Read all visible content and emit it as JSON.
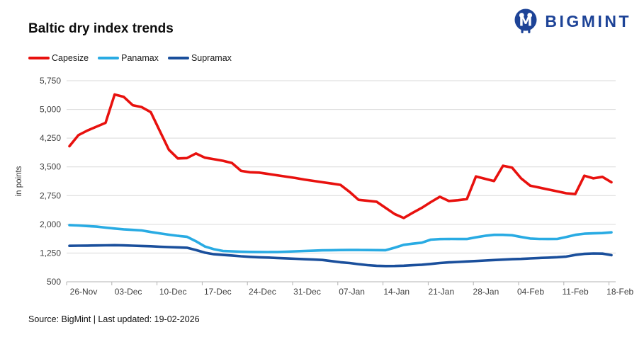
{
  "header": {
    "title": "Baltic dry index trends",
    "brand": "BIGMINT"
  },
  "legend": [
    {
      "label": "Capesize",
      "color": "#e8110e"
    },
    {
      "label": "Panamax",
      "color": "#29abe3"
    },
    {
      "label": "Supramax",
      "color": "#1a4f9c"
    }
  ],
  "footer": {
    "text": "Source: BigMint | Last updated: 19-02-2026"
  },
  "colors": {
    "grid": "#d9d9d9",
    "axis": "#b3b3b3",
    "tick_text": "#3f3f3f",
    "brand_navy": "#1d4397"
  },
  "chart_data": {
    "type": "line",
    "title": "Baltic dry index trends",
    "xlabel": "",
    "ylabel": "in points",
    "ylim": [
      500,
      5750
    ],
    "ytick_step": 750,
    "grid": "horizontal",
    "legend_position": "top-left",
    "y_ticks": [
      "5,750",
      "5,000",
      "4,250",
      "3,500",
      "2,750",
      "2,000",
      "1,250",
      "500"
    ],
    "x_tick_labels": [
      "26-Nov",
      "03-Dec",
      "10-Dec",
      "17-Dec",
      "24-Dec",
      "31-Dec",
      "07-Jan",
      "14-Jan",
      "21-Jan",
      "28-Jan",
      "04-Feb",
      "11-Feb",
      "18-Feb"
    ],
    "x_unit": "daily points, labelled weekly",
    "series": [
      {
        "name": "Capesize",
        "color": "#e8110e",
        "values": [
          4040,
          4330,
          4450,
          4550,
          4650,
          5390,
          5330,
          5110,
          5060,
          4930,
          4440,
          3950,
          3720,
          3730,
          3850,
          3740,
          3700,
          3660,
          3600,
          3395,
          3360,
          3350,
          3315,
          3280,
          3245,
          3210,
          3170,
          3135,
          3100,
          3065,
          3030,
          2850,
          2640,
          2615,
          2590,
          2430,
          2270,
          2165,
          2300,
          2430,
          2580,
          2720,
          2610,
          2630,
          2660,
          3250,
          3190,
          3130,
          3530,
          3480,
          3200,
          3010,
          2960,
          2910,
          2860,
          2810,
          2790,
          3270,
          3200,
          3240,
          3100
        ]
      },
      {
        "name": "Panamax",
        "color": "#29abe3",
        "values": [
          1980,
          1970,
          1955,
          1940,
          1915,
          1890,
          1870,
          1855,
          1840,
          1800,
          1765,
          1730,
          1700,
          1675,
          1560,
          1420,
          1350,
          1305,
          1295,
          1285,
          1280,
          1278,
          1277,
          1278,
          1285,
          1295,
          1305,
          1312,
          1320,
          1325,
          1328,
          1330,
          1330,
          1328,
          1326,
          1325,
          1390,
          1465,
          1495,
          1520,
          1600,
          1615,
          1618,
          1617,
          1616,
          1660,
          1700,
          1726,
          1725,
          1715,
          1670,
          1630,
          1618,
          1616,
          1618,
          1670,
          1726,
          1755,
          1765,
          1772,
          1790
        ]
      },
      {
        "name": "Supramax",
        "color": "#1a4f9c",
        "values": [
          1440,
          1442,
          1445,
          1448,
          1452,
          1455,
          1450,
          1443,
          1435,
          1428,
          1415,
          1405,
          1398,
          1390,
          1330,
          1260,
          1220,
          1200,
          1185,
          1165,
          1150,
          1140,
          1132,
          1122,
          1112,
          1100,
          1090,
          1080,
          1070,
          1040,
          1010,
          990,
          960,
          935,
          917,
          910,
          912,
          920,
          932,
          945,
          965,
          990,
          1007,
          1018,
          1030,
          1042,
          1055,
          1067,
          1078,
          1090,
          1098,
          1110,
          1122,
          1130,
          1142,
          1158,
          1200,
          1228,
          1240,
          1235,
          1195
        ]
      }
    ]
  }
}
